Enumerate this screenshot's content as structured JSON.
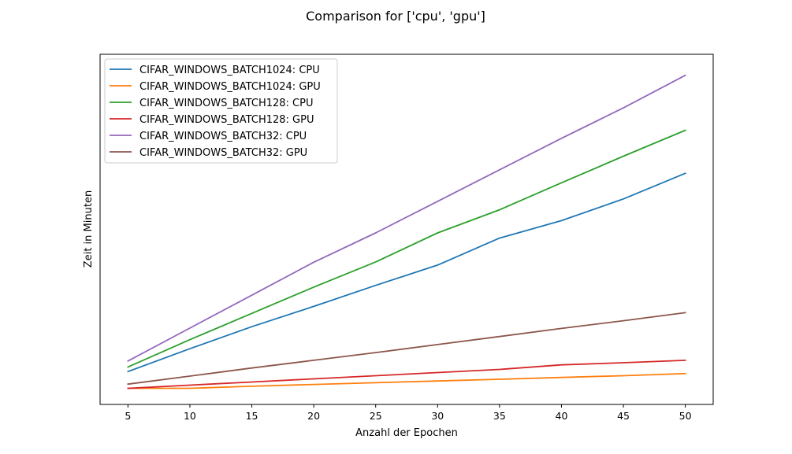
{
  "chart_data": {
    "type": "line",
    "title": "Comparison for ['cpu', 'gpu']",
    "xlabel": "Anzahl der Epochen",
    "ylabel": "Zeit in Minuten",
    "x": [
      5,
      10,
      15,
      20,
      25,
      30,
      35,
      40,
      45,
      50
    ],
    "x_ticks": [
      "5",
      "10",
      "15",
      "20",
      "25",
      "30",
      "35",
      "40",
      "45",
      "50"
    ],
    "xlim": [
      2.75,
      52.25
    ],
    "ylim": [
      0,
      1
    ],
    "y_tick_labels_shown": false,
    "grid": false,
    "legend_position": "top-left",
    "series": [
      {
        "name": "CIFAR_WINDOWS_BATCH1024: CPU",
        "color": "#1f77b4",
        "values": [
          0.094,
          0.159,
          0.222,
          0.28,
          0.34,
          0.398,
          0.475,
          0.525,
          0.587,
          0.66
        ]
      },
      {
        "name": "CIFAR_WINDOWS_BATCH1024: GPU",
        "color": "#ff7f0e",
        "values": [
          0.046,
          0.046,
          0.052,
          0.057,
          0.062,
          0.067,
          0.072,
          0.077,
          0.082,
          0.088
        ]
      },
      {
        "name": "CIFAR_WINDOWS_BATCH128: CPU",
        "color": "#2ca02c",
        "values": [
          0.107,
          0.185,
          0.26,
          0.335,
          0.407,
          0.49,
          0.556,
          0.633,
          0.709,
          0.783
        ]
      },
      {
        "name": "CIFAR_WINDOWS_BATCH128: GPU",
        "color": "#d62728",
        "values": [
          0.046,
          0.055,
          0.064,
          0.073,
          0.082,
          0.091,
          0.1,
          0.113,
          0.119,
          0.126
        ]
      },
      {
        "name": "CIFAR_WINDOWS_BATCH32: CPU",
        "color": "#9467bd",
        "values": [
          0.124,
          0.218,
          0.312,
          0.406,
          0.49,
          0.58,
          0.67,
          0.76,
          0.847,
          0.94
        ]
      },
      {
        "name": "CIFAR_WINDOWS_BATCH32: GPU",
        "color": "#8c564b",
        "values": [
          0.058,
          0.081,
          0.104,
          0.126,
          0.148,
          0.171,
          0.194,
          0.217,
          0.239,
          0.262
        ]
      }
    ]
  }
}
